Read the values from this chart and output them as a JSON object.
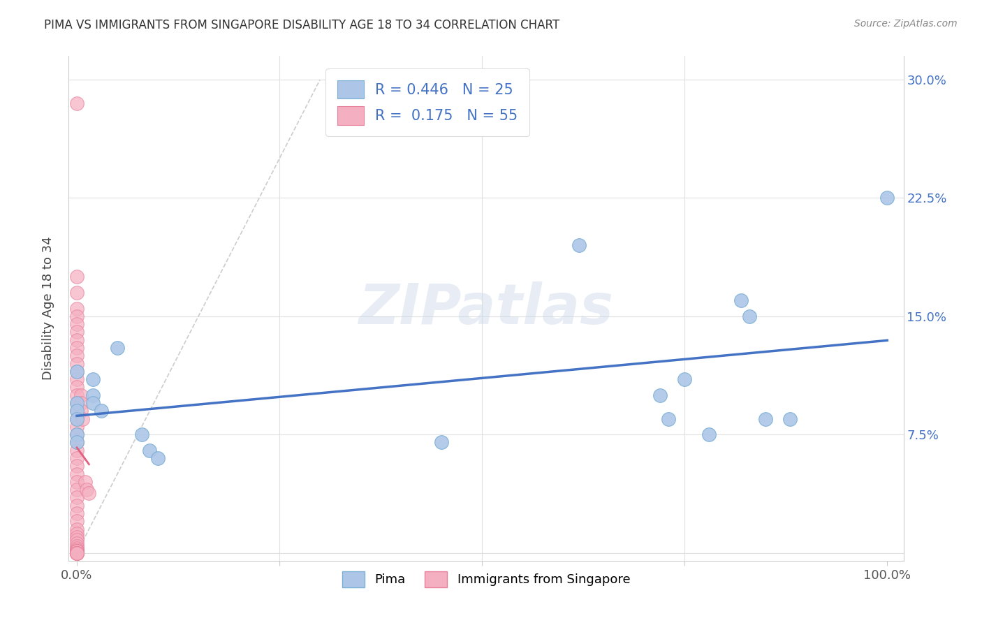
{
  "title": "PIMA VS IMMIGRANTS FROM SINGAPORE DISABILITY AGE 18 TO 34 CORRELATION CHART",
  "source": "Source: ZipAtlas.com",
  "ylabel": "Disability Age 18 to 34",
  "xlim": [
    -0.01,
    1.02
  ],
  "ylim": [
    -0.005,
    0.315
  ],
  "yticks": [
    0.0,
    0.075,
    0.15,
    0.225,
    0.3
  ],
  "yticklabels": [
    "",
    "7.5%",
    "15.0%",
    "22.5%",
    "30.0%"
  ],
  "legend1_label": "R = 0.446   N = 25",
  "legend2_label": "R =  0.175   N = 55",
  "series1_color": "#adc6e8",
  "series2_color": "#f4afc0",
  "series1_edge": "#7aafd4",
  "series2_edge": "#e8809a",
  "trendline1_color": "#4472c4",
  "trendline2_color": "#e06080",
  "watermark": "ZIPatlas",
  "background_color": "#ffffff",
  "grid_color": "#e0e0e0",
  "pima_x": [
    0.0,
    0.0,
    0.0,
    0.0,
    0.0,
    0.0,
    0.02,
    0.02,
    0.02,
    0.03,
    0.05,
    0.08,
    0.09,
    0.1,
    0.45,
    0.62,
    0.72,
    0.73,
    0.75,
    0.78,
    0.82,
    0.83,
    0.85,
    0.88,
    1.0
  ],
  "pima_y": [
    0.115,
    0.095,
    0.09,
    0.085,
    0.075,
    0.07,
    0.11,
    0.1,
    0.095,
    0.09,
    0.13,
    0.075,
    0.065,
    0.06,
    0.07,
    0.195,
    0.1,
    0.085,
    0.11,
    0.075,
    0.16,
    0.15,
    0.085,
    0.085,
    0.225
  ],
  "singapore_x": [
    0.0,
    0.0,
    0.0,
    0.0,
    0.0,
    0.0,
    0.0,
    0.0,
    0.0,
    0.0,
    0.0,
    0.0,
    0.0,
    0.0,
    0.0,
    0.0,
    0.0,
    0.0,
    0.0,
    0.0,
    0.0,
    0.0,
    0.0,
    0.0,
    0.0,
    0.0,
    0.0,
    0.0,
    0.0,
    0.0,
    0.0,
    0.0,
    0.0,
    0.0,
    0.0,
    0.0,
    0.0,
    0.0,
    0.0,
    0.0,
    0.0,
    0.0,
    0.0,
    0.0,
    0.0,
    0.0,
    0.0,
    0.0,
    0.005,
    0.005,
    0.005,
    0.007,
    0.01,
    0.012,
    0.015
  ],
  "singapore_y": [
    0.285,
    0.175,
    0.165,
    0.155,
    0.15,
    0.145,
    0.14,
    0.135,
    0.13,
    0.125,
    0.12,
    0.115,
    0.11,
    0.105,
    0.1,
    0.095,
    0.09,
    0.085,
    0.08,
    0.075,
    0.07,
    0.065,
    0.06,
    0.055,
    0.05,
    0.045,
    0.04,
    0.035,
    0.03,
    0.025,
    0.02,
    0.015,
    0.012,
    0.01,
    0.008,
    0.006,
    0.004,
    0.003,
    0.002,
    0.001,
    0.001,
    0.001,
    0.0,
    0.0,
    0.0,
    0.0,
    0.0,
    0.0,
    0.1,
    0.095,
    0.09,
    0.085,
    0.045,
    0.04,
    0.038
  ]
}
